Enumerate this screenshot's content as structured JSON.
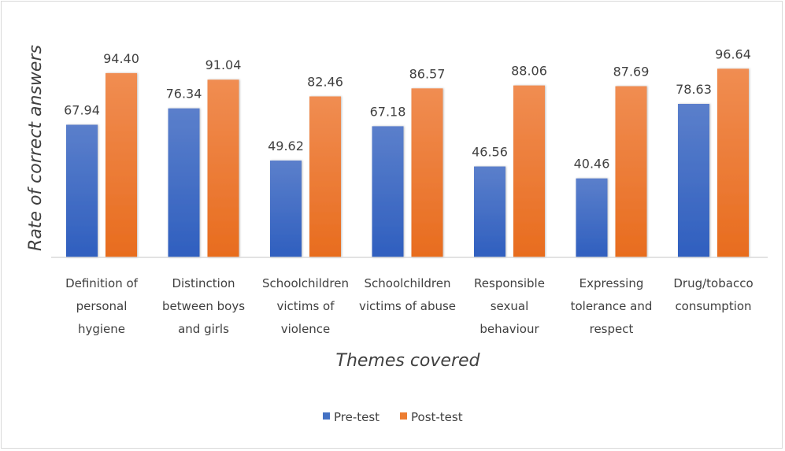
{
  "chart_data": {
    "type": "bar",
    "title": "",
    "xlabel": "Themes covered",
    "ylabel": "Rate of correct answers",
    "ylim": [
      0,
      131.85
    ],
    "grid": false,
    "legend_position": "bottom",
    "categories": [
      [
        "Definition of",
        "personal",
        "hygiene"
      ],
      [
        "Distinction",
        "between boys",
        "and girls"
      ],
      [
        "Schoolchildren",
        "victims of",
        "violence"
      ],
      [
        "Schoolchildren",
        "victims of abuse"
      ],
      [
        "Responsible",
        "sexual",
        "behaviour"
      ],
      [
        "Expressing",
        "tolerance and",
        "respect"
      ],
      [
        "Drug/tobacco",
        "consumption"
      ]
    ],
    "series": [
      {
        "name": "Pre-test",
        "color": "#4472C4",
        "values": [
          67.94,
          76.34,
          49.62,
          67.18,
          46.56,
          40.46,
          78.63
        ],
        "labels": [
          "67.94",
          "76.34",
          "49.62",
          "67.18",
          "46.56",
          "40.46",
          "78.63"
        ]
      },
      {
        "name": "Post-test",
        "color": "#ED7D31",
        "values": [
          94.4,
          91.04,
          82.46,
          86.57,
          88.06,
          87.69,
          96.64
        ],
        "labels": [
          "94.40",
          "91.04",
          "82.46",
          "86.57",
          "88.06",
          "87.69",
          "96.64"
        ]
      }
    ]
  }
}
